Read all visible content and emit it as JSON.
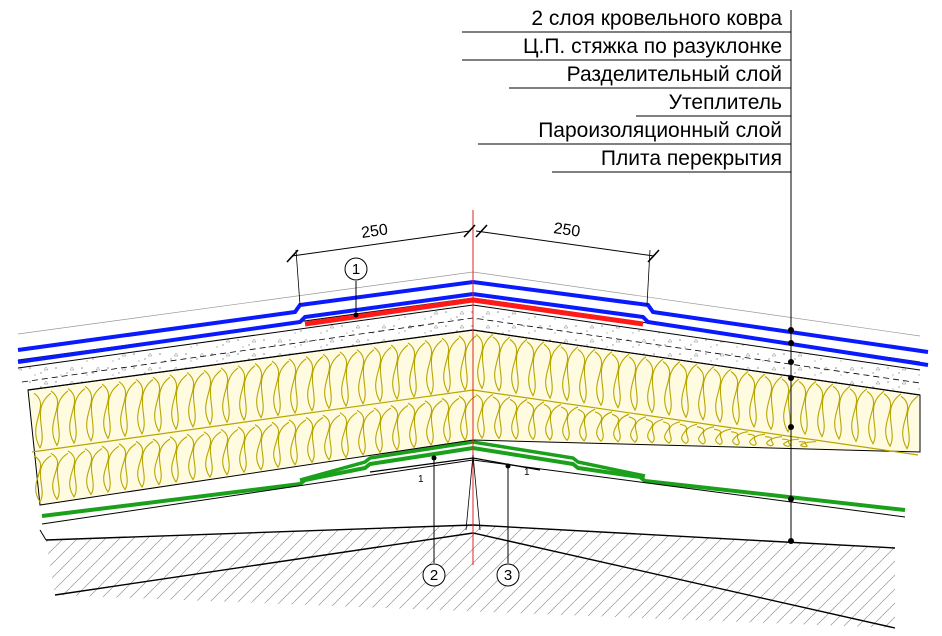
{
  "layers": [
    "2 слоя кровельного ковра",
    "Ц.П. стяжка по разуклонке",
    "Разделительный слой",
    "Утеплитель",
    "Пароизоляционный слой",
    "Плита перекрытия"
  ],
  "dimensions": {
    "left": "250",
    "right": "250"
  },
  "callouts": [
    "1",
    "2",
    "3"
  ],
  "small_marks": [
    "1",
    "1"
  ],
  "colors": {
    "roofing": "#0a1aff",
    "reinforcement": "#ff1a1a",
    "vapor_barrier": "#1aa01a",
    "insulation_fill": "#fffbe0",
    "insulation_stroke": "#b8a600",
    "axis": "#e02020",
    "lines": "#000000"
  }
}
